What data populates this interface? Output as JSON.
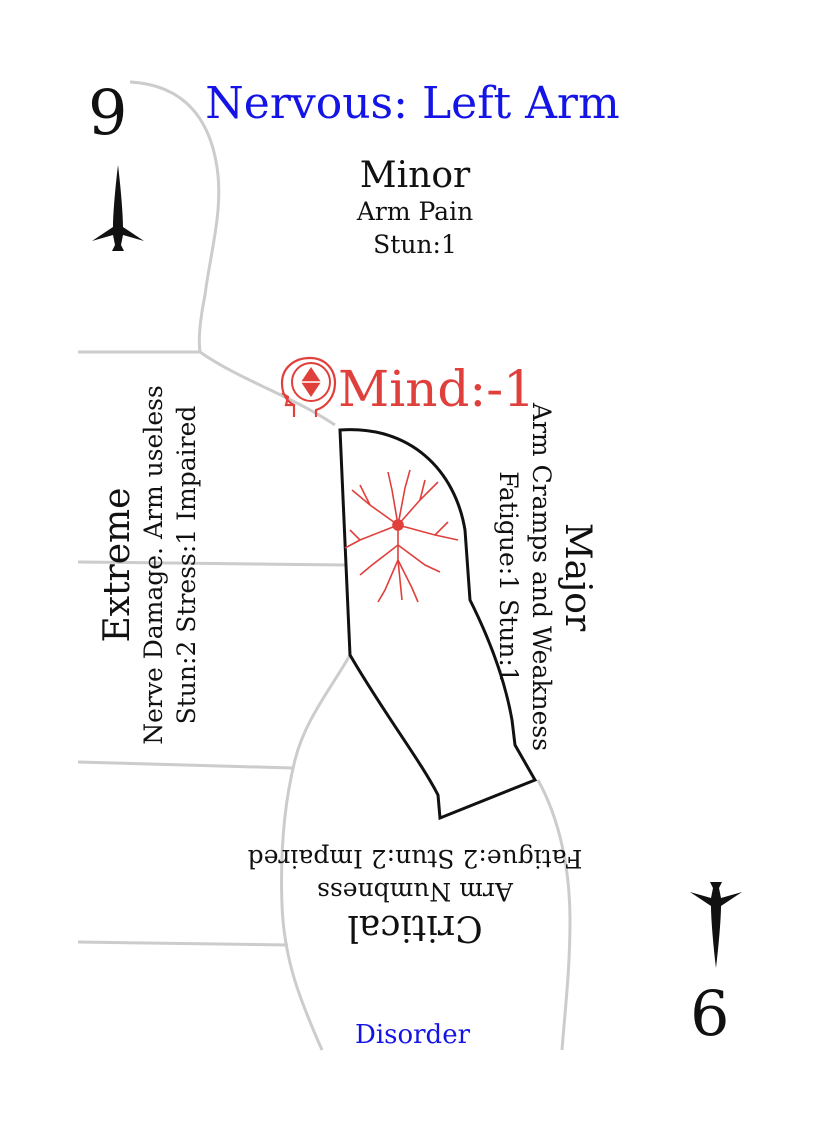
{
  "card": {
    "title": "Nervous: Left Arm",
    "rank": "9",
    "rank_rotated": "9",
    "suit_icon": "sword-icon",
    "footer": "Disorder",
    "mind": {
      "icon": "head-gem-icon",
      "label": "Mind:-1"
    },
    "severities": {
      "minor": {
        "title": "Minor",
        "lines": [
          "Arm Pain",
          "Stun:1"
        ]
      },
      "major": {
        "title": "Major",
        "lines": [
          "Arm Cramps and Weakness",
          "Fatigue:1 Stun:1"
        ]
      },
      "critical": {
        "title": "Critical",
        "lines": [
          "Arm Numbness",
          "Fatigue:2 Stun:2 Impaired"
        ]
      },
      "extreme": {
        "title": "Extreme",
        "lines": [
          "Nerve Damage. Arm useless",
          "Stun:2 Stress:1 Impaired"
        ]
      }
    },
    "colors": {
      "title": "#1414e6",
      "mind": "#e0403c",
      "outline": "#cccccc",
      "nerve": "#e0403c"
    }
  }
}
